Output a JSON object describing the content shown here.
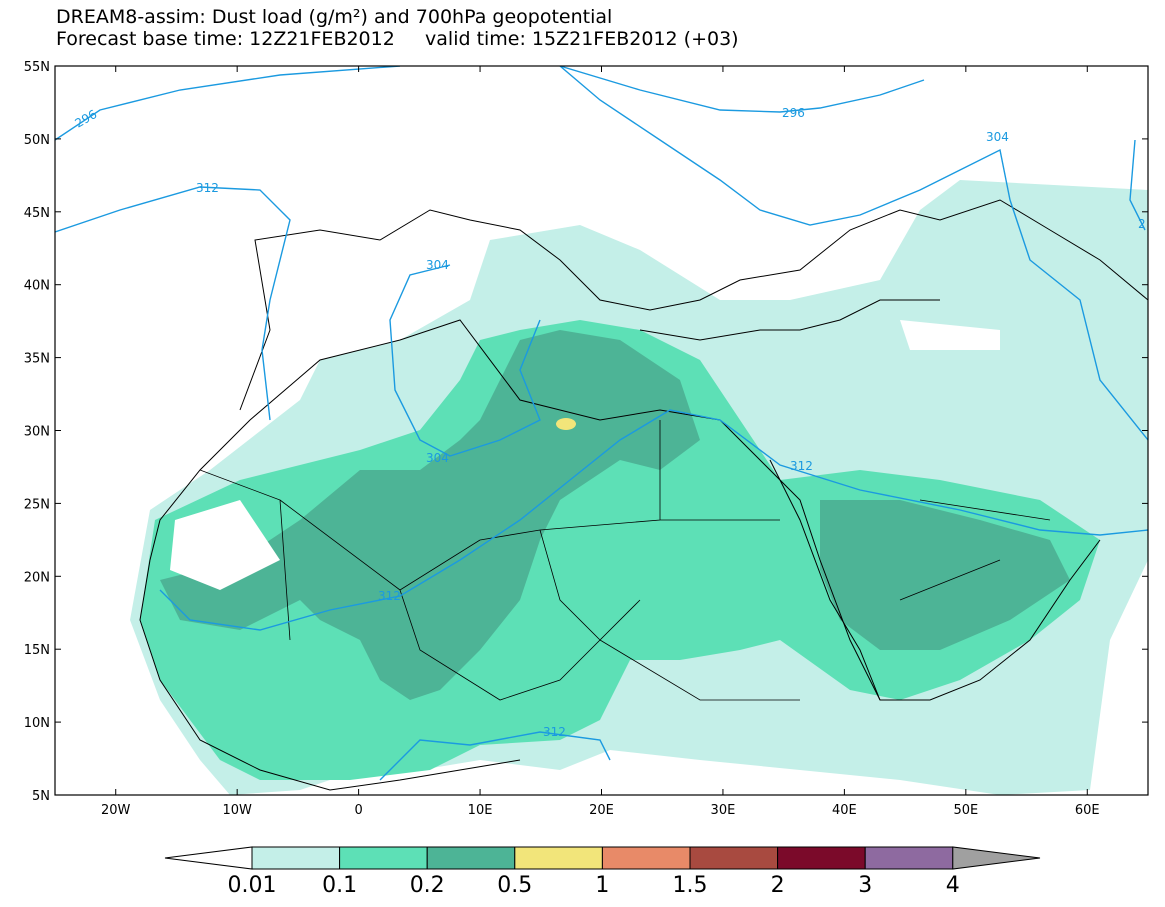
{
  "title": {
    "line1": "DREAM8-assim: Dust load (g/m²) and 700hPa geopotential",
    "line2": "Forecast base time: 12Z21FEB2012     valid time: 15Z21FEB2012 (+03)"
  },
  "axes": {
    "lat_labels": [
      "55N",
      "50N",
      "45N",
      "40N",
      "35N",
      "30N",
      "25N",
      "20N",
      "15N",
      "10N",
      "5N"
    ],
    "lat_values": [
      55,
      50,
      45,
      40,
      35,
      30,
      25,
      20,
      15,
      10,
      5
    ],
    "lon_labels": [
      "20W",
      "10W",
      "0",
      "10E",
      "20E",
      "30E",
      "40E",
      "50E",
      "60E"
    ],
    "lon_values": [
      -20,
      -10,
      0,
      10,
      20,
      30,
      40,
      50,
      60
    ],
    "lon_range": [
      -25,
      65
    ],
    "lat_range": [
      5,
      55
    ]
  },
  "contours": {
    "color": "#1b9ae0",
    "labels": [
      "296",
      "296",
      "312",
      "304",
      "304",
      "304",
      "312",
      "312",
      "312",
      "2"
    ]
  },
  "colorbar": {
    "labels": [
      "0.01",
      "0.1",
      "0.2",
      "0.5",
      "1",
      "1.5",
      "2",
      "3",
      "4"
    ],
    "colors": [
      "#c4efe8",
      "#5de0b6",
      "#4db496",
      "#f2e57a",
      "#e88a68",
      "#a84a40",
      "#7b0a2a",
      "#8e6aa0"
    ],
    "under_color": "#ffffff",
    "over_color": "#a0a0a0"
  },
  "dust_colors": {
    "light": "#c4efe8",
    "mid": "#5de0b6",
    "dark": "#4db496",
    "peak": "#f2e57a"
  }
}
